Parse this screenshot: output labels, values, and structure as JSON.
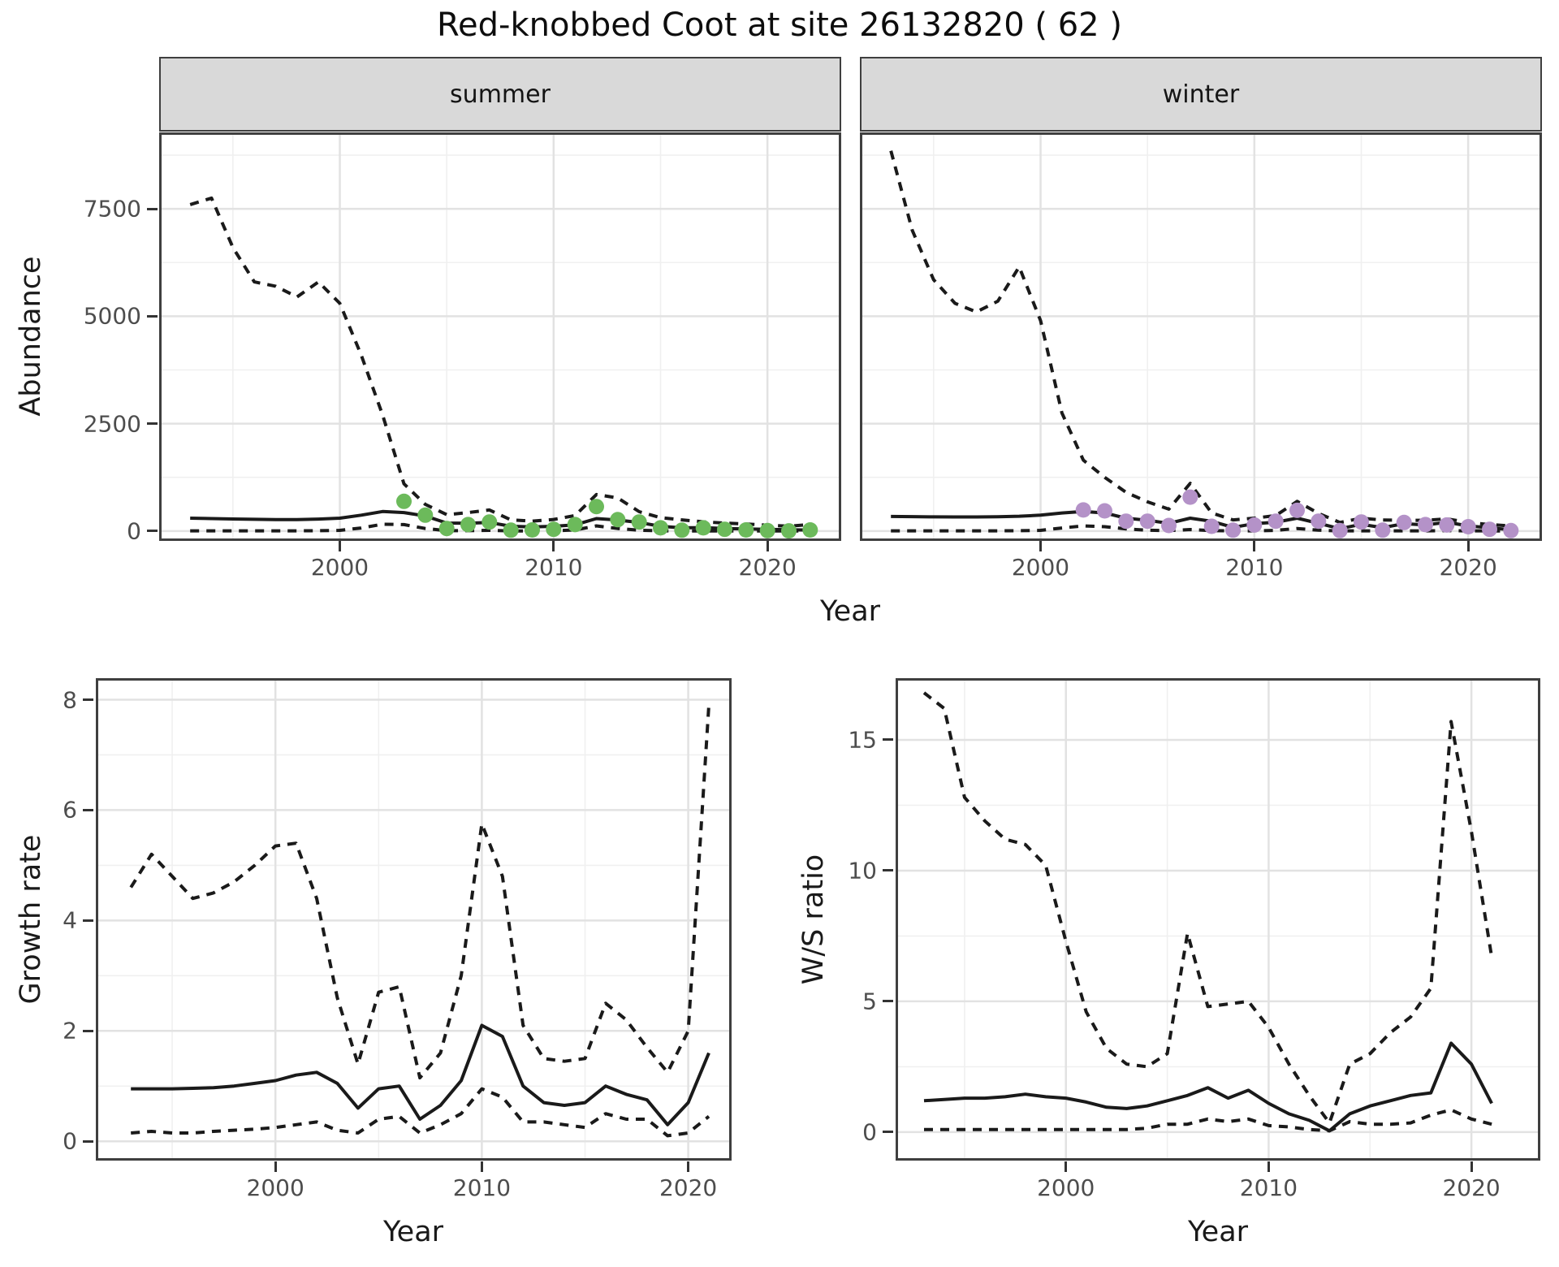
{
  "title": "Red-knobbed Coot at site 26132820 ( 62 )",
  "facets": {
    "summer": "summer",
    "winter": "winter"
  },
  "axes": {
    "abundance_label": "Abundance",
    "growth_label": "Growth rate",
    "ws_label": "W/S ratio",
    "year_label": "Year"
  },
  "colors": {
    "summer_point": "#6cba5b",
    "winter_point": "#b492c8",
    "line": "#1a1a1a",
    "grid_major": "#e2e2e2",
    "grid_minor": "#f0f0f0",
    "strip_bg": "#d9d9d9",
    "panel_border": "#3f3f3f",
    "tick_text": "#4d4d4d"
  },
  "chart_data": [
    {
      "id": "abundance-summer",
      "type": "line",
      "facet_label": "summer",
      "xlabel": "Year",
      "ylabel": "Abundance",
      "legend": "none",
      "grid": true,
      "x_range": [
        1991.55,
        2023.45
      ],
      "y_range": [
        -230,
        9280
      ],
      "x_ticks": [
        2000,
        2010,
        2020
      ],
      "x_minor_ticks": [
        1995,
        2005,
        2015
      ],
      "y_ticks": [
        0,
        2500,
        5000,
        7500
      ],
      "y_minor_ticks": [
        1250,
        3750,
        6250,
        8750
      ],
      "years": [
        1993,
        1994,
        1995,
        1996,
        1997,
        1998,
        1999,
        2000,
        2001,
        2002,
        2003,
        2004,
        2005,
        2006,
        2007,
        2008,
        2009,
        2010,
        2011,
        2012,
        2013,
        2014,
        2015,
        2016,
        2017,
        2018,
        2019,
        2020,
        2021,
        2022
      ],
      "series": [
        {
          "name": "upper-ci",
          "style": "dashed",
          "values": [
            7600,
            7750,
            6600,
            5800,
            5700,
            5450,
            5800,
            5300,
            4100,
            2700,
            1100,
            620,
            380,
            430,
            490,
            260,
            230,
            270,
            360,
            850,
            770,
            450,
            310,
            260,
            215,
            185,
            165,
            135,
            115,
            150
          ]
        },
        {
          "name": "estimate",
          "style": "solid",
          "values": [
            300,
            290,
            280,
            272,
            268,
            268,
            278,
            300,
            370,
            455,
            430,
            350,
            185,
            180,
            200,
            110,
            95,
            110,
            145,
            290,
            255,
            200,
            110,
            75,
            80,
            60,
            48,
            38,
            30,
            24
          ]
        },
        {
          "name": "lower-ci",
          "style": "dashed",
          "values": [
            5,
            5,
            5,
            5,
            5,
            5,
            8,
            15,
            70,
            160,
            150,
            60,
            8,
            8,
            15,
            2,
            2,
            5,
            25,
            120,
            60,
            20,
            5,
            2,
            2,
            2,
            2,
            2,
            2,
            2
          ]
        }
      ],
      "points": {
        "name": "observed-count",
        "color": "#6cba5b",
        "years": [
          2003,
          2004,
          2005,
          2006,
          2007,
          2008,
          2009,
          2010,
          2011,
          2012,
          2013,
          2014,
          2015,
          2016,
          2017,
          2018,
          2019,
          2020,
          2021,
          2022
        ],
        "values": [
          690,
          370,
          60,
          150,
          210,
          20,
          25,
          40,
          150,
          570,
          265,
          210,
          75,
          20,
          75,
          40,
          25,
          10,
          5,
          25
        ]
      }
    },
    {
      "id": "abundance-winter",
      "type": "line",
      "facet_label": "winter",
      "xlabel": "Year",
      "ylabel": "Abundance",
      "legend": "none",
      "grid": true,
      "x_range": [
        1991.55,
        2023.45
      ],
      "y_range": [
        -230,
        9280
      ],
      "x_ticks": [
        2000,
        2010,
        2020
      ],
      "x_minor_ticks": [
        1995,
        2005,
        2015
      ],
      "y_ticks": [
        0,
        2500,
        5000,
        7500
      ],
      "y_minor_ticks": [
        1250,
        3750,
        6250,
        8750
      ],
      "years": [
        1993,
        1994,
        1995,
        1996,
        1997,
        1998,
        1999,
        2000,
        2001,
        2002,
        2003,
        2004,
        2005,
        2006,
        2007,
        2008,
        2009,
        2010,
        2011,
        2012,
        2013,
        2014,
        2015,
        2016,
        2017,
        2018,
        2019,
        2020,
        2021,
        2022
      ],
      "series": [
        {
          "name": "upper-ci",
          "style": "dashed",
          "values": [
            8850,
            7000,
            5850,
            5300,
            5100,
            5350,
            6150,
            4900,
            2750,
            1650,
            1250,
            900,
            680,
            510,
            1110,
            420,
            260,
            300,
            360,
            690,
            410,
            200,
            300,
            255,
            250,
            250,
            285,
            200,
            150,
            120
          ]
        },
        {
          "name": "estimate",
          "style": "solid",
          "values": [
            340,
            335,
            330,
            328,
            328,
            332,
            345,
            370,
            420,
            455,
            420,
            300,
            250,
            180,
            300,
            225,
            85,
            170,
            205,
            300,
            180,
            55,
            155,
            80,
            170,
            140,
            205,
            120,
            75,
            30
          ]
        },
        {
          "name": "lower-ci",
          "style": "dashed",
          "values": [
            5,
            5,
            5,
            5,
            5,
            5,
            8,
            15,
            70,
            120,
            100,
            50,
            20,
            10,
            35,
            10,
            2,
            5,
            15,
            60,
            20,
            2,
            5,
            2,
            5,
            5,
            10,
            5,
            2,
            2
          ]
        }
      ],
      "points": {
        "name": "observed-count",
        "color": "#b492c8",
        "years": [
          2002,
          2003,
          2004,
          2005,
          2006,
          2007,
          2008,
          2009,
          2010,
          2011,
          2012,
          2013,
          2014,
          2015,
          2016,
          2017,
          2018,
          2019,
          2020,
          2021,
          2022
        ],
        "values": [
          490,
          470,
          230,
          230,
          130,
          790,
          110,
          20,
          140,
          230,
          480,
          230,
          10,
          210,
          20,
          200,
          150,
          140,
          100,
          40,
          10
        ]
      }
    },
    {
      "id": "growth-rate",
      "type": "line",
      "facet_label": "",
      "xlabel": "Year",
      "ylabel": "Growth rate",
      "legend": "none",
      "grid": true,
      "x_range": [
        1991.3,
        2022.1
      ],
      "y_range": [
        -0.35,
        8.39
      ],
      "x_ticks": [
        2000,
        2010,
        2020
      ],
      "x_minor_ticks": [
        1995,
        2005,
        2015
      ],
      "y_ticks": [
        0,
        2,
        4,
        6,
        8
      ],
      "y_minor_ticks": [
        1,
        3,
        5,
        7
      ],
      "years": [
        1993,
        1994,
        1995,
        1996,
        1997,
        1998,
        1999,
        2000,
        2001,
        2002,
        2003,
        2004,
        2005,
        2006,
        2007,
        2008,
        2009,
        2010,
        2011,
        2012,
        2013,
        2014,
        2015,
        2016,
        2017,
        2018,
        2019,
        2020,
        2021
      ],
      "series": [
        {
          "name": "upper-ci",
          "style": "dashed",
          "values": [
            4.6,
            5.2,
            4.8,
            4.4,
            4.5,
            4.7,
            5.0,
            5.35,
            5.4,
            4.4,
            2.6,
            1.4,
            2.7,
            2.8,
            1.15,
            1.6,
            3.0,
            5.75,
            4.8,
            2.1,
            1.5,
            1.45,
            1.5,
            2.5,
            2.2,
            1.7,
            1.25,
            2.0,
            7.9
          ]
        },
        {
          "name": "estimate",
          "style": "solid",
          "values": [
            0.95,
            0.95,
            0.95,
            0.96,
            0.97,
            1.0,
            1.05,
            1.1,
            1.2,
            1.25,
            1.05,
            0.6,
            0.95,
            1.0,
            0.4,
            0.65,
            1.1,
            2.1,
            1.9,
            1.0,
            0.7,
            0.65,
            0.7,
            1.0,
            0.85,
            0.75,
            0.3,
            0.7,
            1.6
          ]
        },
        {
          "name": "lower-ci",
          "style": "dashed",
          "values": [
            0.15,
            0.18,
            0.15,
            0.15,
            0.18,
            0.2,
            0.22,
            0.25,
            0.3,
            0.35,
            0.2,
            0.15,
            0.4,
            0.45,
            0.15,
            0.3,
            0.5,
            0.95,
            0.8,
            0.35,
            0.35,
            0.3,
            0.25,
            0.5,
            0.4,
            0.4,
            0.1,
            0.15,
            0.45
          ]
        }
      ],
      "points": null
    },
    {
      "id": "ws-ratio",
      "type": "line",
      "facet_label": "",
      "xlabel": "Year",
      "ylabel": "W/S ratio",
      "legend": "none",
      "grid": true,
      "x_range": [
        1991.6,
        2023.4
      ],
      "y_range": [
        -1.09,
        17.36
      ],
      "x_ticks": [
        2000,
        2010,
        2020
      ],
      "x_minor_ticks": [
        1995,
        2005,
        2015
      ],
      "y_ticks": [
        0,
        5,
        10,
        15
      ],
      "y_minor_ticks": [
        2.5,
        7.5,
        12.5
      ],
      "years": [
        1993,
        1994,
        1995,
        1996,
        1997,
        1998,
        1999,
        2000,
        2001,
        2002,
        2003,
        2004,
        2005,
        2006,
        2007,
        2008,
        2009,
        2010,
        2011,
        2012,
        2013,
        2014,
        2015,
        2016,
        2017,
        2018,
        2019,
        2020,
        2021
      ],
      "series": [
        {
          "name": "upper-ci",
          "style": "dashed",
          "values": [
            16.8,
            16.2,
            12.8,
            11.9,
            11.2,
            11.0,
            10.2,
            7.3,
            4.6,
            3.2,
            2.6,
            2.5,
            3.0,
            7.6,
            4.8,
            4.9,
            5.0,
            4.0,
            2.6,
            1.4,
            0.35,
            2.6,
            3.0,
            3.8,
            4.4,
            5.5,
            15.7,
            11.5,
            6.7
          ]
        },
        {
          "name": "estimate",
          "style": "solid",
          "values": [
            1.2,
            1.25,
            1.3,
            1.3,
            1.35,
            1.45,
            1.35,
            1.3,
            1.15,
            0.95,
            0.9,
            1.0,
            1.2,
            1.4,
            1.7,
            1.3,
            1.6,
            1.1,
            0.7,
            0.45,
            0.05,
            0.7,
            1.0,
            1.2,
            1.4,
            1.5,
            3.4,
            2.6,
            1.1
          ]
        },
        {
          "name": "lower-ci",
          "style": "dashed",
          "values": [
            0.1,
            0.1,
            0.1,
            0.1,
            0.1,
            0.1,
            0.1,
            0.1,
            0.1,
            0.1,
            0.1,
            0.15,
            0.3,
            0.3,
            0.5,
            0.4,
            0.5,
            0.25,
            0.2,
            0.1,
            0.05,
            0.4,
            0.3,
            0.3,
            0.35,
            0.65,
            0.85,
            0.5,
            0.3
          ]
        }
      ],
      "points": null
    }
  ]
}
